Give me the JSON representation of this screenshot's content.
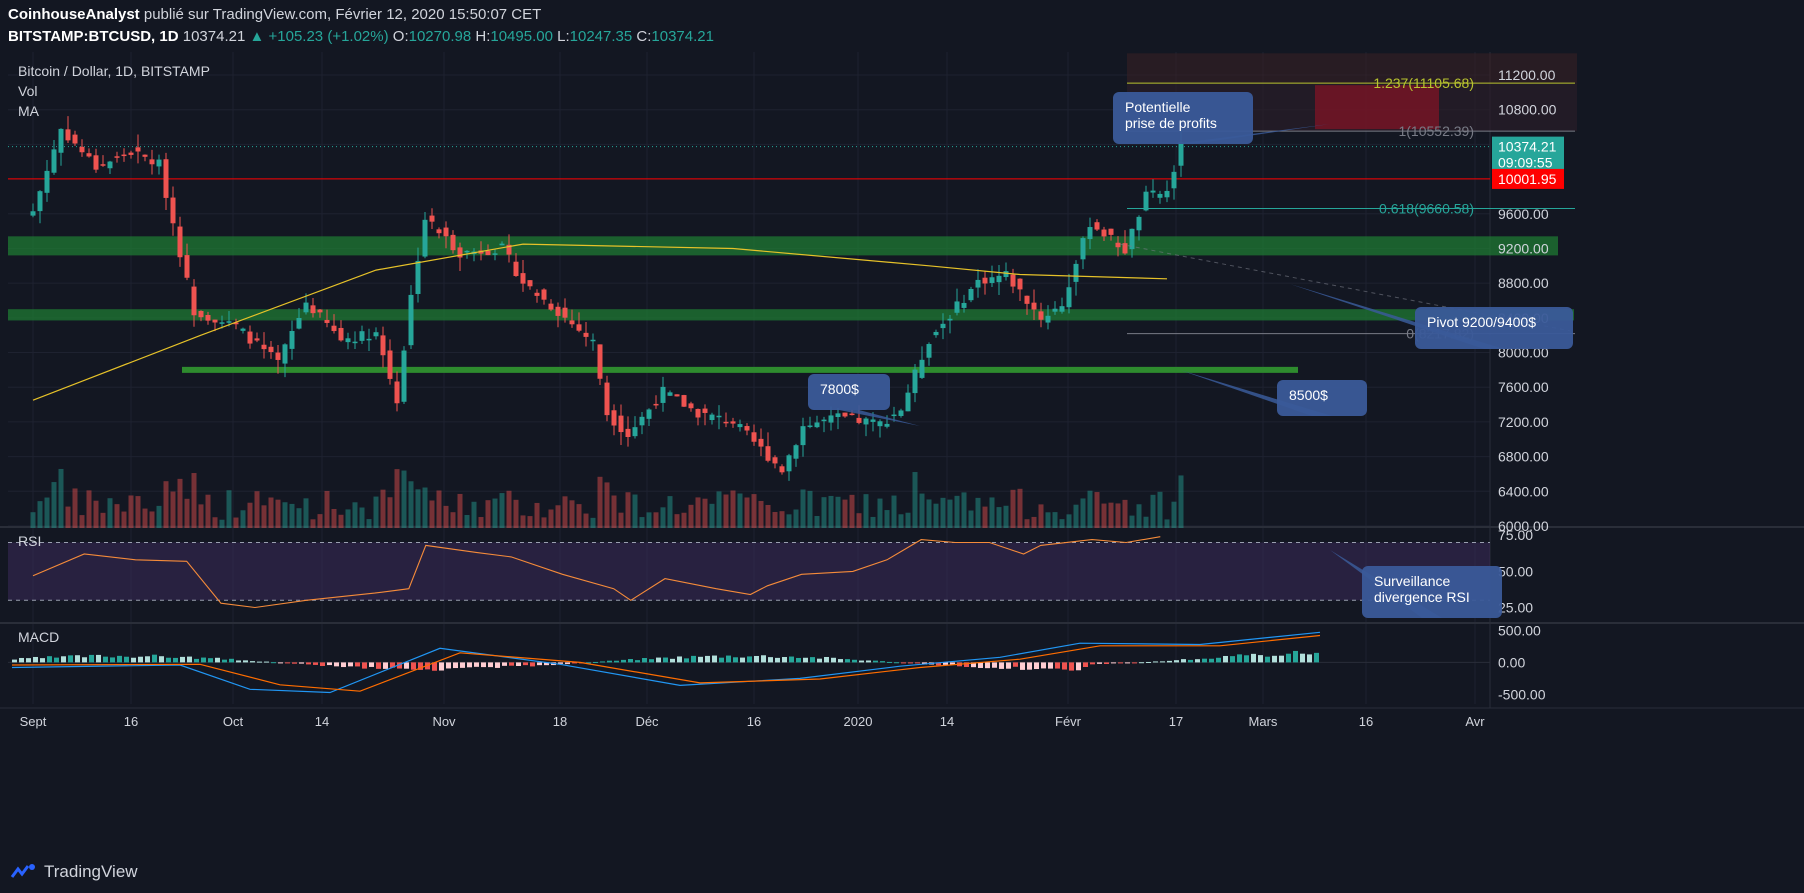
{
  "header": {
    "author": "CoinhouseAnalyst",
    "published_text": "publié sur TradingView.com, Février 12, 2020 15:50:07 CET",
    "symbol": "BITSTAMP:BTCUSD, 1D",
    "last": "10374.21",
    "change_arrow": "▲",
    "change": "+105.23 (+1.02%)",
    "o_label": "O:",
    "o": "10270.98",
    "h_label": "H:",
    "h": "10495.00",
    "l_label": "L:",
    "l": "10247.35",
    "c_label": "C:",
    "c": "10374.21"
  },
  "chart_data": {
    "type": "candlestick",
    "title": "Bitcoin / Dollar, 1D, BITSTAMP",
    "legend": [
      "Vol",
      "MA"
    ],
    "x_ticks": [
      "Sept",
      "16",
      "Oct",
      "14",
      "Nov",
      "18",
      "Déc",
      "16",
      "2020",
      "14",
      "Févr",
      "17",
      "Mars",
      "16",
      "Avr"
    ],
    "price_axis": {
      "ticks": [
        11200,
        10800,
        10400,
        10000,
        9600,
        9200,
        8800,
        8400,
        8000,
        7600,
        7200,
        6800,
        6400,
        6000
      ],
      "tick_labels": [
        "11200.00",
        "10800.00",
        "10400.00",
        "10000.00",
        "9600.00",
        "9200.00",
        "8800.00",
        "8400.00",
        "8000.00",
        "7600.00",
        "7200.00",
        "6800.00",
        "6400.00",
        "6000.00"
      ],
      "ylim": [
        6000,
        11250
      ]
    },
    "price_labels": {
      "last": "10374.21",
      "countdown": "09:09:55",
      "red_line": "10001.95"
    },
    "close_series_approx": [
      [
        "2019-09-01",
        9630
      ],
      [
        "2019-09-05",
        10580
      ],
      [
        "2019-09-10",
        10140
      ],
      [
        "2019-09-15",
        10310
      ],
      [
        "2019-09-19",
        10170
      ],
      [
        "2019-09-24",
        8480
      ],
      [
        "2019-09-30",
        8300
      ],
      [
        "2019-10-06",
        7880
      ],
      [
        "2019-10-10",
        8580
      ],
      [
        "2019-10-15",
        8150
      ],
      [
        "2019-10-20",
        8230
      ],
      [
        "2019-10-23",
        7450
      ],
      [
        "2019-10-25",
        8650
      ],
      [
        "2019-10-27",
        9550
      ],
      [
        "2019-11-01",
        9150
      ],
      [
        "2019-11-07",
        9200
      ],
      [
        "2019-11-10",
        8810
      ],
      [
        "2019-11-15",
        8470
      ],
      [
        "2019-11-20",
        8120
      ],
      [
        "2019-11-22",
        7300
      ],
      [
        "2019-11-25",
        7050
      ],
      [
        "2019-11-30",
        7550
      ],
      [
        "2019-12-05",
        7300
      ],
      [
        "2019-12-10",
        7200
      ],
      [
        "2019-12-17",
        6650
      ],
      [
        "2019-12-20",
        7150
      ],
      [
        "2019-12-25",
        7250
      ],
      [
        "2019-12-31",
        7180
      ],
      [
        "2020-01-03",
        7350
      ],
      [
        "2020-01-07",
        8150
      ],
      [
        "2020-01-14",
        8820
      ],
      [
        "2020-01-18",
        8900
      ],
      [
        "2020-01-23",
        8400
      ],
      [
        "2020-01-26",
        8550
      ],
      [
        "2020-01-30",
        9500
      ],
      [
        "2020-02-04",
        9180
      ],
      [
        "2020-02-07",
        9800
      ],
      [
        "2020-02-10",
        9850
      ],
      [
        "2020-02-12",
        10374
      ]
    ],
    "moving_average_approx": [
      [
        "2019-09-01",
        7450
      ],
      [
        "2019-09-25",
        8200
      ],
      [
        "2019-10-20",
        8950
      ],
      [
        "2019-11-10",
        9250
      ],
      [
        "2019-12-10",
        9200
      ],
      [
        "2020-01-07",
        9000
      ],
      [
        "2020-01-20",
        8900
      ],
      [
        "2020-02-10",
        8850
      ]
    ],
    "support_lines": [
      {
        "label": "7800$",
        "value": 7800
      },
      {
        "label": "8500$",
        "value": 8450
      },
      {
        "label": "Pivot 9200/9400$",
        "value": 9250
      }
    ],
    "fibonacci": [
      {
        "level": "1.237",
        "label": "1.237(11105.68)",
        "value": 11105.68
      },
      {
        "level": "1",
        "label": "1(10552.39)",
        "value": 10552.39
      },
      {
        "level": "0.618",
        "label": "0.618(9660.58)",
        "value": 9660.58
      },
      {
        "level": "0",
        "label": "0(8217.82)",
        "value": 8217.82
      }
    ],
    "annotations": [
      "Potentielle\nprise de profits",
      "Pivot 9200/9400$",
      "7800$",
      "8500$",
      "Surveillance\ndivergence RSI"
    ],
    "rsi": {
      "label": "RSI",
      "ticks": [
        75,
        50,
        25
      ],
      "tick_labels": [
        "75.00",
        "50.00",
        "25.00"
      ],
      "ylim": [
        15,
        80
      ],
      "series_approx": [
        [
          0,
          47
        ],
        [
          6,
          62
        ],
        [
          12,
          58
        ],
        [
          18,
          57
        ],
        [
          22,
          28
        ],
        [
          26,
          25
        ],
        [
          32,
          30
        ],
        [
          40,
          35
        ],
        [
          44,
          38
        ],
        [
          46,
          68
        ],
        [
          52,
          63
        ],
        [
          56,
          60
        ],
        [
          62,
          48
        ],
        [
          68,
          38
        ],
        [
          70,
          30
        ],
        [
          74,
          45
        ],
        [
          80,
          38
        ],
        [
          84,
          34
        ],
        [
          86,
          40
        ],
        [
          90,
          48
        ],
        [
          96,
          50
        ],
        [
          100,
          58
        ],
        [
          104,
          72
        ],
        [
          108,
          70
        ],
        [
          112,
          70
        ],
        [
          116,
          62
        ],
        [
          118,
          68
        ],
        [
          124,
          72
        ],
        [
          128,
          70
        ],
        [
          132,
          74
        ]
      ]
    },
    "macd": {
      "label": "MACD",
      "ticks": [
        500,
        0,
        -500
      ],
      "tick_labels": [
        "500.00",
        "0.00",
        "-500.00"
      ],
      "ylim": [
        -650,
        600
      ]
    },
    "colors": {
      "up": "#26a69a",
      "down": "#ef5350",
      "ma": "#e6c229",
      "red_line": "#ff0000",
      "zone": "#1f7a33"
    }
  },
  "annotation_texts": {
    "profit": "Potentielle\nprise de profits",
    "pivot": "Pivot 9200/9400$",
    "s7800": "7800$",
    "s8500": "8500$",
    "rsi_note": "Surveillance\ndivergence RSI"
  },
  "footer": {
    "brand": "TradingView"
  }
}
